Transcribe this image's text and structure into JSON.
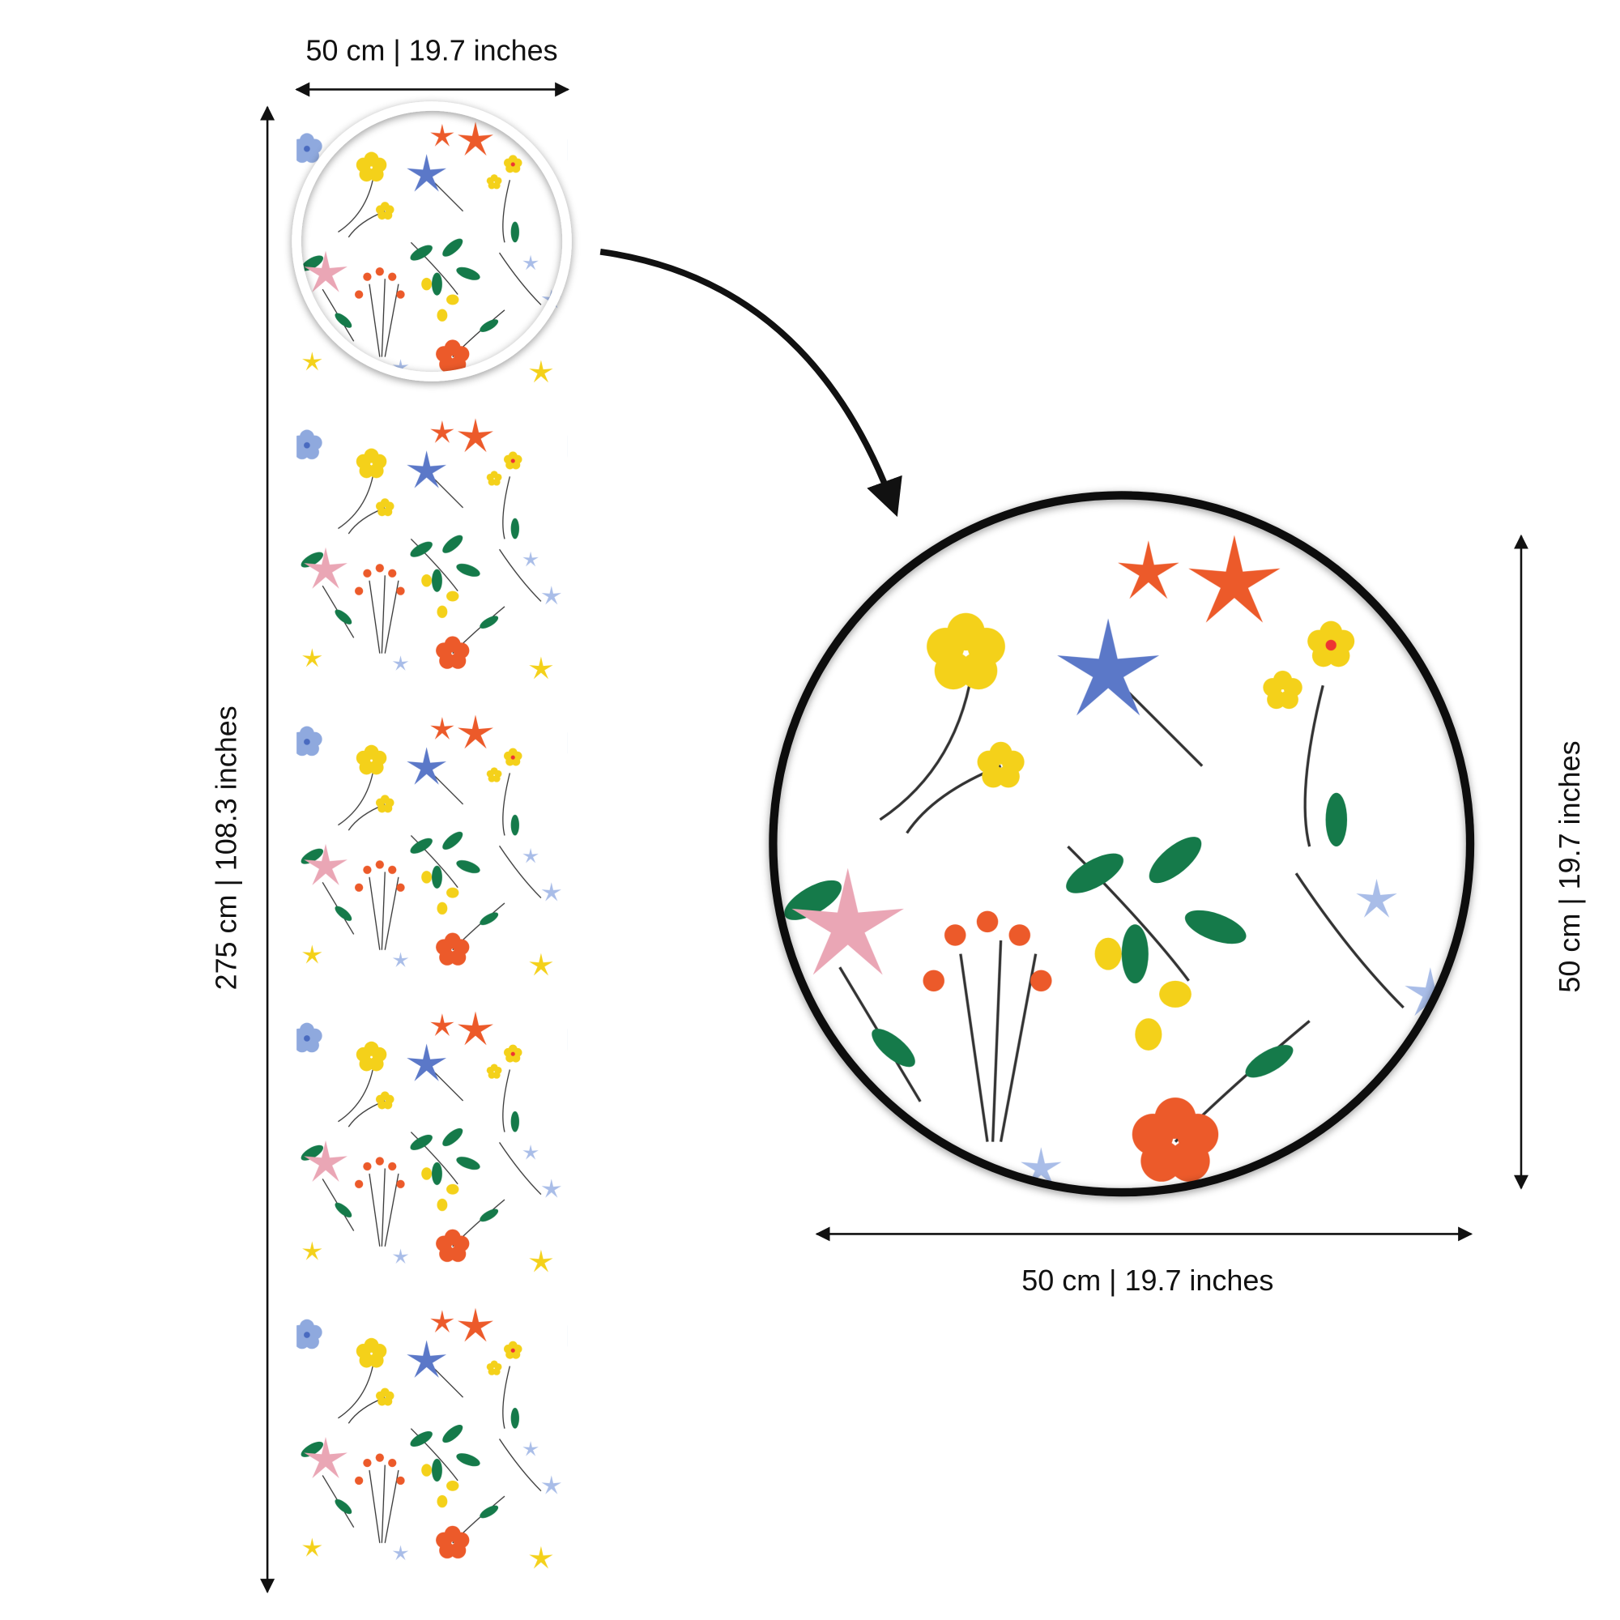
{
  "labels": {
    "strip_width": "50 cm | 19.7 inches",
    "strip_height": "275 cm | 108.3 inches",
    "zoom_height": "50 cm | 19.7 inches",
    "zoom_width": "50 cm | 19.7 inches"
  }
}
